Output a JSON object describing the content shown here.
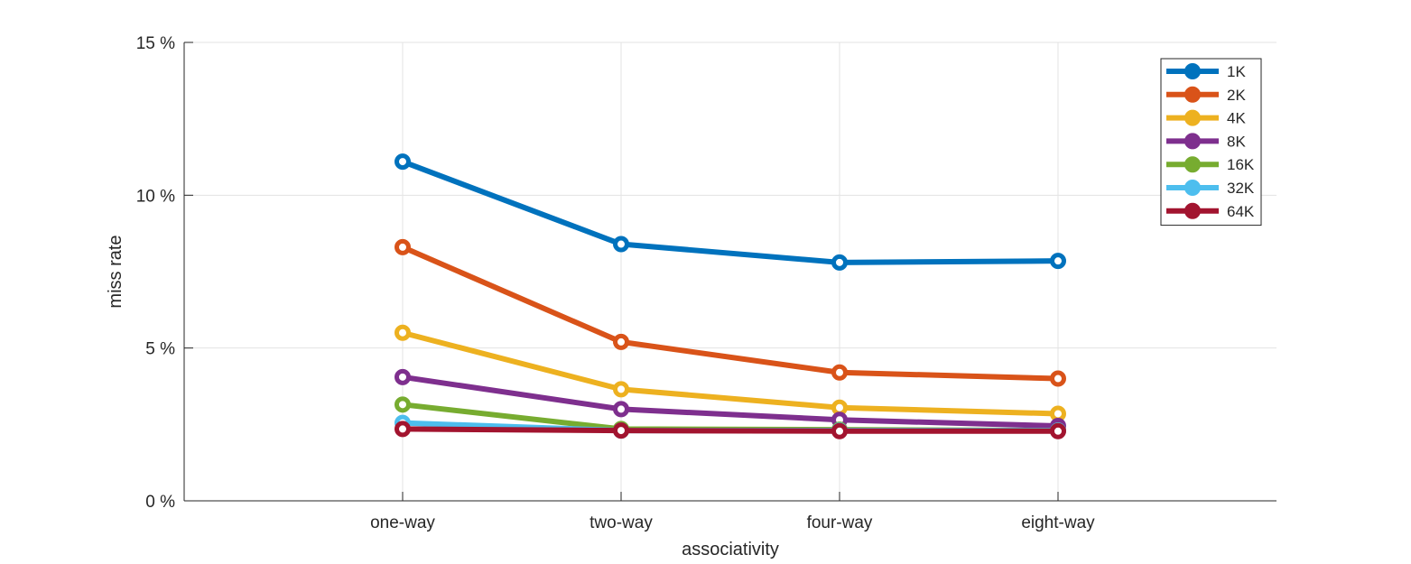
{
  "chart_data": {
    "type": "line",
    "title": "",
    "xlabel": "associativity",
    "ylabel": "miss rate",
    "categories": [
      "one-way",
      "two-way",
      "four-way",
      "eight-way"
    ],
    "ylim": [
      0,
      15
    ],
    "yticks": [
      0,
      5,
      10,
      15
    ],
    "ytick_labels": [
      "0 %",
      "5 %",
      "10 %",
      "15 %"
    ],
    "grid": true,
    "legend_position": "top-right",
    "series": [
      {
        "name": "1K",
        "color": "#0072bd",
        "values": [
          11.1,
          8.4,
          7.8,
          7.85
        ]
      },
      {
        "name": "2K",
        "color": "#d95319",
        "values": [
          8.3,
          5.2,
          4.2,
          4.0
        ]
      },
      {
        "name": "4K",
        "color": "#edb120",
        "values": [
          5.5,
          3.65,
          3.05,
          2.85
        ]
      },
      {
        "name": "8K",
        "color": "#7e2f8e",
        "values": [
          4.05,
          3.0,
          2.65,
          2.45
        ]
      },
      {
        "name": "16K",
        "color": "#77ac30",
        "values": [
          3.15,
          2.35,
          2.33,
          2.3
        ]
      },
      {
        "name": "32K",
        "color": "#4dbeee",
        "values": [
          2.55,
          2.3,
          2.3,
          2.3
        ]
      },
      {
        "name": "64K",
        "color": "#a2142f",
        "values": [
          2.35,
          2.3,
          2.28,
          2.28
        ]
      }
    ]
  }
}
